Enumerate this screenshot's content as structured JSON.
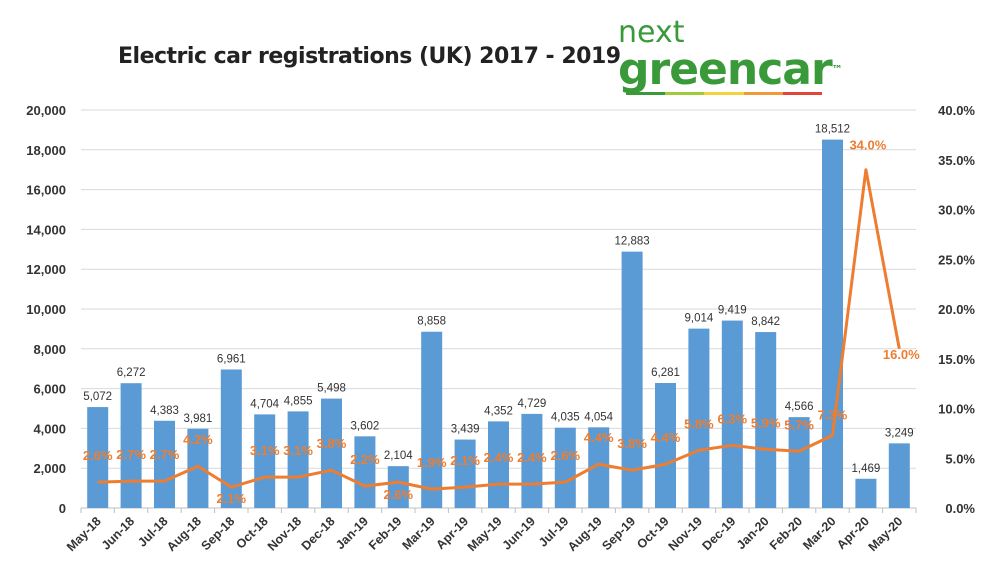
{
  "logo": {
    "line1": "next",
    "line2": "greencar",
    "tm": "™"
  },
  "chart_data": {
    "type": "bar+line",
    "title": "Electric car registrations (UK) 2017 - 2019",
    "categories": [
      "May-18",
      "Jun-18",
      "Jul-18",
      "Aug-18",
      "Sep-18",
      "Oct-18",
      "Nov-18",
      "Dec-18",
      "Jan-19",
      "Feb-19",
      "Mar-19",
      "Apr-19",
      "May-19",
      "Jun-19",
      "Jul-19",
      "Aug-19",
      "Sep-19",
      "Oct-19",
      "Nov-19",
      "Dec-19",
      "Jan-20",
      "Feb-20",
      "Mar-20",
      "Apr-20",
      "May-20"
    ],
    "series": [
      {
        "type": "bar",
        "axis": "left",
        "color": "#5b9bd5",
        "values": [
          5072,
          6272,
          4383,
          3981,
          6961,
          4704,
          4855,
          5498,
          3602,
          2104,
          8858,
          3439,
          4352,
          4729,
          4035,
          4054,
          12883,
          6281,
          9014,
          9419,
          8842,
          4566,
          18512,
          1469,
          3249
        ],
        "labels": [
          "5,072",
          "6,272",
          "4,383",
          "3,981",
          "6,961",
          "4,704",
          "4,855",
          "5,498",
          "3,602",
          "2,104",
          "8,858",
          "3,439",
          "4,352",
          "4,729",
          "4,035",
          "4,054",
          "12,883",
          "6,281",
          "9,014",
          "9,419",
          "8,842",
          "4,566",
          "18,512",
          "1,469",
          "3,249"
        ]
      },
      {
        "type": "line",
        "axis": "right",
        "color": "#ed7d31",
        "values": [
          2.6,
          2.7,
          2.7,
          4.2,
          2.1,
          3.1,
          3.1,
          3.8,
          2.2,
          2.6,
          1.9,
          2.1,
          2.4,
          2.4,
          2.6,
          4.4,
          3.8,
          4.4,
          5.8,
          6.3,
          5.9,
          5.7,
          7.3,
          34.0,
          16.0
        ],
        "labels": [
          "2.6%",
          "2.7%",
          "2.7%",
          "4.2%",
          "2.1%",
          "3.1%",
          "3.1%",
          "3.8%",
          "2.2%",
          "2.6%",
          "1.9%",
          "2.1%",
          "2.4%",
          "2.4%",
          "2.6%",
          "4.4%",
          "3.8%",
          "4.4%",
          "5.8%",
          "6.3%",
          "5.9%",
          "5.7%",
          "7.3%",
          "34.0%",
          "16.0%"
        ]
      }
    ],
    "ylim": [
      0,
      20000
    ],
    "y_ticks": [
      "0",
      "2,000",
      "4,000",
      "6,000",
      "8,000",
      "10,000",
      "12,000",
      "14,000",
      "16,000",
      "18,000",
      "20,000"
    ],
    "y2lim": [
      0,
      40
    ],
    "y2_ticks": [
      "0.0%",
      "5.0%",
      "10.0%",
      "15.0%",
      "20.0%",
      "25.0%",
      "30.0%",
      "35.0%",
      "40.0%"
    ],
    "grid": true,
    "legend": "none"
  }
}
